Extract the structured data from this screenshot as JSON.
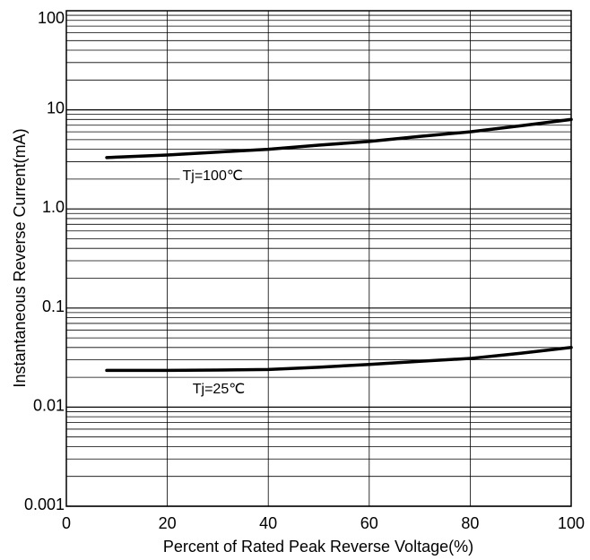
{
  "chart_data": {
    "type": "line",
    "xlabel": "Percent of Rated Peak Reverse Voltage(%)",
    "ylabel": "Instantaneous Reverse Current(mA)",
    "xlim": [
      0,
      100
    ],
    "ylim": [
      0.001,
      100
    ],
    "y_scale": "log",
    "grid": true,
    "x_ticks": [
      0,
      20,
      40,
      60,
      80,
      100
    ],
    "x_tick_labels": [
      "0",
      "20",
      "40",
      "60",
      "80",
      "100"
    ],
    "y_ticks": [
      0.001,
      0.01,
      0.1,
      1,
      10,
      100
    ],
    "y_tick_labels": [
      "0.001",
      "0.01",
      "0.1",
      "1.0",
      "10",
      "100"
    ],
    "series": [
      {
        "label": "Tj=100℃",
        "label_at": [
          23,
          2.0
        ],
        "color": "#000000",
        "x": [
          8,
          20,
          30,
          40,
          50,
          60,
          70,
          80,
          90,
          100
        ],
        "y": [
          3.3,
          3.5,
          3.75,
          4.0,
          4.4,
          4.8,
          5.4,
          6.0,
          6.9,
          8.0
        ]
      },
      {
        "label": "Tj=25℃",
        "label_at": [
          25,
          0.014
        ],
        "color": "#000000",
        "x": [
          8,
          20,
          30,
          40,
          50,
          60,
          70,
          80,
          90,
          100
        ],
        "y": [
          0.0235,
          0.0235,
          0.0237,
          0.024,
          0.0253,
          0.027,
          0.029,
          0.031,
          0.035,
          0.04
        ]
      }
    ]
  }
}
